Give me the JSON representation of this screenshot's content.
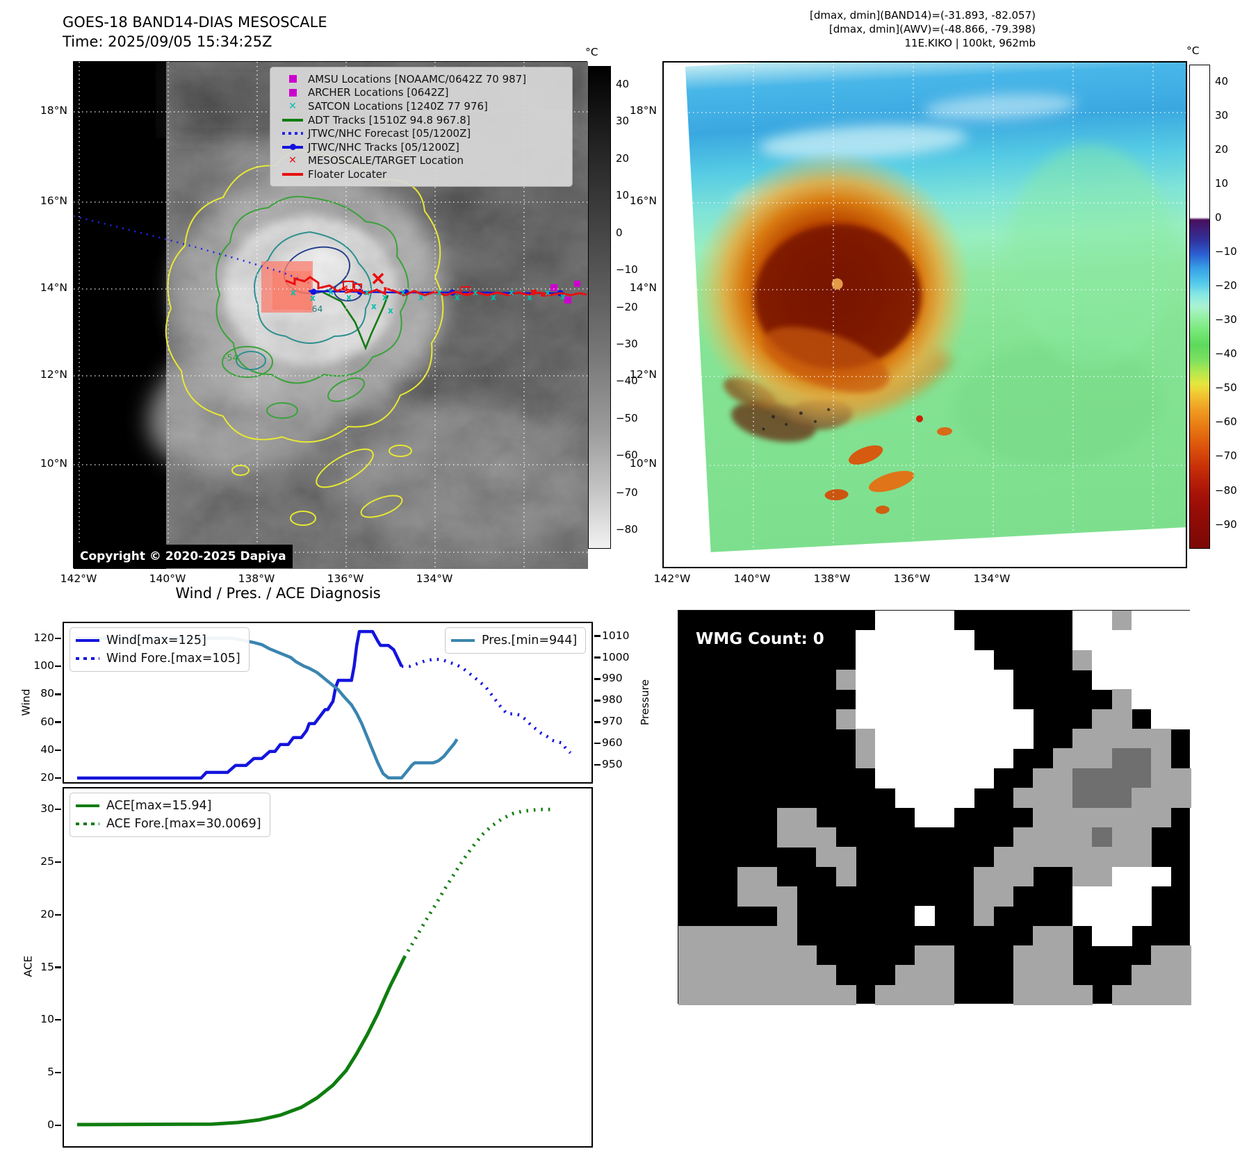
{
  "header": {
    "title_line1": "GOES-18 BAND14-DIAS MESOSCALE",
    "title_line2": "Time: 2025/09/05 15:34:25Z",
    "right_line1": "[dmax, dmin](BAND14)=(-31.893, -82.057)",
    "right_line2": "[dmax, dmin](AWV)=(-48.866, -79.398)",
    "right_line3": "11E.KIKO | 100kt, 962mb"
  },
  "band14_map": {
    "legend": [
      {
        "label": "AMSU Locations [NOAAMC/0642Z 70 987]",
        "marker": "square",
        "color": "#cc00cc"
      },
      {
        "label": "ARCHER Locations [0642Z]",
        "marker": "square",
        "color": "#cc00cc"
      },
      {
        "label": "SATCON Locations [1240Z 77 976]",
        "marker": "x",
        "color": "#00bfae"
      },
      {
        "label": "ADT Tracks [1510Z 94.8 967.8]",
        "marker": "line",
        "color": "#0e7d0e"
      },
      {
        "label": "JTWC/NHC Forecast [05/1200Z]",
        "marker": "dotted",
        "color": "#2323e8"
      },
      {
        "label": "JTWC/NHC Tracks [05/1200Z]",
        "marker": "line-dot",
        "color": "#1313dd"
      },
      {
        "label": "MESOSCALE/TARGET Location",
        "marker": "x",
        "color": "#e81010"
      },
      {
        "label": "Floater Locater",
        "marker": "line",
        "color": "#e81010"
      }
    ],
    "copyright": "Copyright © 2020-2025 Dapiya",
    "lat_ticks": [
      "18°N",
      "16°N",
      "14°N",
      "12°N",
      "10°N"
    ],
    "lon_ticks": [
      "142°W",
      "140°W",
      "138°W",
      "136°W",
      "134°W"
    ],
    "contour_labels": [
      "-64",
      "-54"
    ],
    "colorbar": {
      "unit": "°C",
      "ticks": [
        40,
        30,
        20,
        10,
        0,
        -10,
        -20,
        -30,
        -40,
        -50,
        -60,
        -70,
        -80
      ]
    }
  },
  "awv_map": {
    "lat_ticks": [
      "18°N",
      "16°N",
      "14°N",
      "12°N",
      "10°N"
    ],
    "lon_ticks": [
      "142°W",
      "140°W",
      "138°W",
      "136°W",
      "134°W"
    ],
    "colorbar": {
      "unit": "°C",
      "ticks": [
        40,
        30,
        20,
        10,
        0,
        -10,
        -20,
        -30,
        -40,
        -50,
        -60,
        -70,
        -80,
        -90
      ]
    }
  },
  "wmg": {
    "label": "WMG Count: 0",
    "palette": {
      "k": "#000000",
      "g": "#a6a6a6",
      "w": "#ffffff",
      "d": "#6f6f6f"
    },
    "grid": [
      "kkkkkkkkkkwwwwkkkkkkwwgwww",
      "kkkkkkkkkwwwwwwkkkkkwwwwww",
      "kkkkkkkkkwwwwwwwkkkkgwwwww",
      "kkkkkkkkgwwwwwwwwkkkkwwwww",
      "kkkkkkkkkwwwwwwwwkkkkkgwww",
      "kkkkkkkkgwwwwwwwwwkkkggkww",
      "kkkkkkkkkgwwwwwwwwkkgggggk",
      "kkkkkkkkkgwwwwwwwkkgggddgk",
      "kkkkkkkkkkwwwwwwkkggddddgg",
      "kkkkkkkkkkkwwwwkkgggdddggg",
      "kkkkkggkkkkkwwkkkkgggggggk",
      "kkkkkgggkkkkkkkkkggggdggkk",
      "kkkkkkkggkkkkkkkggggggggkk",
      "kkkggkkkgkkkkkkgggkkggwwwk",
      "kkkgggkkkkkkkkkggkkkwwwwkk",
      "kkkkkgkkkkkkwkkgkkkkwwwwkk",
      "ggggggkkkkkkkkkkkkggkwwkkk",
      "gggggggkkkkkggkkkgggkkkkgg",
      "ggggggggkkkgggkkkgggkkkggg",
      "gggggggggkggggkkkggggkgggg"
    ]
  },
  "chart_data": [
    {
      "id": "wind_pres",
      "type": "line",
      "title": "Wind / Pres. / ACE Diagnosis",
      "ylabel_left": "Wind",
      "ylabel_right": "Pressure",
      "y_left_ticks": [
        20,
        40,
        60,
        80,
        100,
        120
      ],
      "y_left_range": [
        17,
        131
      ],
      "y_right_ticks": [
        950,
        960,
        970,
        980,
        990,
        1000,
        1010
      ],
      "y_right_range": [
        942,
        1016
      ],
      "series": [
        {
          "name": "Wind[max=125]",
          "axis": "left",
          "style": "solid",
          "color": "#1414dd",
          "width": 4.5,
          "points": [
            [
              0.025,
              20
            ],
            [
              0.26,
              20
            ],
            [
              0.27,
              24
            ],
            [
              0.31,
              24
            ],
            [
              0.325,
              29
            ],
            [
              0.345,
              29
            ],
            [
              0.36,
              34
            ],
            [
              0.375,
              34
            ],
            [
              0.39,
              39
            ],
            [
              0.4,
              39
            ],
            [
              0.41,
              44
            ],
            [
              0.425,
              44
            ],
            [
              0.435,
              49
            ],
            [
              0.45,
              49
            ],
            [
              0.46,
              54
            ],
            [
              0.465,
              59
            ],
            [
              0.475,
              59
            ],
            [
              0.485,
              64
            ],
            [
              0.495,
              69
            ],
            [
              0.5,
              69
            ],
            [
              0.51,
              75
            ],
            [
              0.515,
              85
            ],
            [
              0.52,
              90
            ],
            [
              0.545,
              90
            ],
            [
              0.55,
              100
            ],
            [
              0.555,
              115
            ],
            [
              0.56,
              125
            ],
            [
              0.585,
              125
            ],
            [
              0.595,
              118
            ],
            [
              0.6,
              115
            ],
            [
              0.615,
              115
            ],
            [
              0.625,
              112
            ],
            [
              0.63,
              108
            ],
            [
              0.635,
              104
            ],
            [
              0.64,
              100
            ]
          ]
        },
        {
          "name": "Wind Fore.[max=105]",
          "axis": "left",
          "style": "dotted",
          "color": "#1414dd",
          "width": 4.5,
          "points": [
            [
              0.64,
              100
            ],
            [
              0.655,
              100
            ],
            [
              0.67,
              102
            ],
            [
              0.685,
              104
            ],
            [
              0.7,
              105
            ],
            [
              0.715,
              105
            ],
            [
              0.73,
              103
            ],
            [
              0.745,
              101
            ],
            [
              0.755,
              99
            ],
            [
              0.765,
              96
            ],
            [
              0.775,
              93
            ],
            [
              0.785,
              90
            ],
            [
              0.8,
              85
            ],
            [
              0.81,
              80
            ],
            [
              0.82,
              75
            ],
            [
              0.83,
              70
            ],
            [
              0.84,
              66
            ],
            [
              0.855,
              66
            ],
            [
              0.865,
              65
            ],
            [
              0.875,
              62
            ],
            [
              0.885,
              58
            ],
            [
              0.895,
              55
            ],
            [
              0.905,
              52
            ],
            [
              0.915,
              50
            ],
            [
              0.925,
              47
            ],
            [
              0.935,
              46
            ],
            [
              0.945,
              45
            ],
            [
              0.95,
              42
            ],
            [
              0.955,
              40
            ],
            [
              0.96,
              38
            ]
          ]
        },
        {
          "name": "Pres.[min=944]",
          "axis": "right",
          "style": "solid",
          "color": "#3a85b0",
          "width": 4.5,
          "points": [
            [
              0.025,
              1009
            ],
            [
              0.32,
              1009
            ],
            [
              0.34,
              1008
            ],
            [
              0.36,
              1007
            ],
            [
              0.375,
              1006
            ],
            [
              0.39,
              1004
            ],
            [
              0.41,
              1002
            ],
            [
              0.43,
              1000
            ],
            [
              0.44,
              998
            ],
            [
              0.455,
              996
            ],
            [
              0.465,
              995
            ],
            [
              0.48,
              993
            ],
            [
              0.49,
              991
            ],
            [
              0.5,
              989
            ],
            [
              0.51,
              987
            ],
            [
              0.52,
              985
            ],
            [
              0.53,
              982
            ],
            [
              0.545,
              978
            ],
            [
              0.555,
              974
            ],
            [
              0.565,
              969
            ],
            [
              0.575,
              963
            ],
            [
              0.585,
              957
            ],
            [
              0.595,
              951
            ],
            [
              0.605,
              946
            ],
            [
              0.615,
              944
            ],
            [
              0.64,
              944
            ],
            [
              0.65,
              947
            ],
            [
              0.66,
              950
            ],
            [
              0.665,
              951
            ],
            [
              0.7,
              951
            ],
            [
              0.71,
              952
            ],
            [
              0.72,
              954
            ],
            [
              0.73,
              957
            ],
            [
              0.74,
              960
            ],
            [
              0.745,
              962
            ]
          ]
        }
      ]
    },
    {
      "id": "ace",
      "type": "line",
      "title": "",
      "ylabel_left": "ACE",
      "y_left_ticks": [
        0,
        5,
        10,
        15,
        20,
        25,
        30
      ],
      "y_left_range": [
        -2,
        32
      ],
      "series": [
        {
          "name": "ACE[max=15.94]",
          "axis": "left",
          "style": "solid",
          "color": "#0f7d0f",
          "width": 5,
          "points": [
            [
              0.025,
              0.05
            ],
            [
              0.28,
              0.1
            ],
            [
              0.33,
              0.25
            ],
            [
              0.37,
              0.5
            ],
            [
              0.41,
              0.95
            ],
            [
              0.45,
              1.7
            ],
            [
              0.48,
              2.6
            ],
            [
              0.51,
              3.8
            ],
            [
              0.535,
              5.2
            ],
            [
              0.555,
              6.8
            ],
            [
              0.575,
              8.6
            ],
            [
              0.595,
              10.6
            ],
            [
              0.61,
              12.3
            ],
            [
              0.62,
              13.4
            ],
            [
              0.63,
              14.4
            ],
            [
              0.645,
              15.94
            ]
          ]
        },
        {
          "name": "ACE Fore.[max=30.0069]",
          "axis": "left",
          "style": "dotted",
          "color": "#0f7d0f",
          "width": 5,
          "points": [
            [
              0.645,
              15.94
            ],
            [
              0.66,
              17.2
            ],
            [
              0.675,
              18.5
            ],
            [
              0.69,
              19.8
            ],
            [
              0.705,
              21.0
            ],
            [
              0.72,
              22.3
            ],
            [
              0.735,
              23.5
            ],
            [
              0.75,
              24.7
            ],
            [
              0.765,
              25.8
            ],
            [
              0.78,
              26.8
            ],
            [
              0.795,
              27.7
            ],
            [
              0.81,
              28.4
            ],
            [
              0.83,
              29.1
            ],
            [
              0.85,
              29.6
            ],
            [
              0.87,
              29.85
            ],
            [
              0.9,
              30.0
            ],
            [
              0.93,
              30.0069
            ]
          ]
        }
      ]
    }
  ]
}
